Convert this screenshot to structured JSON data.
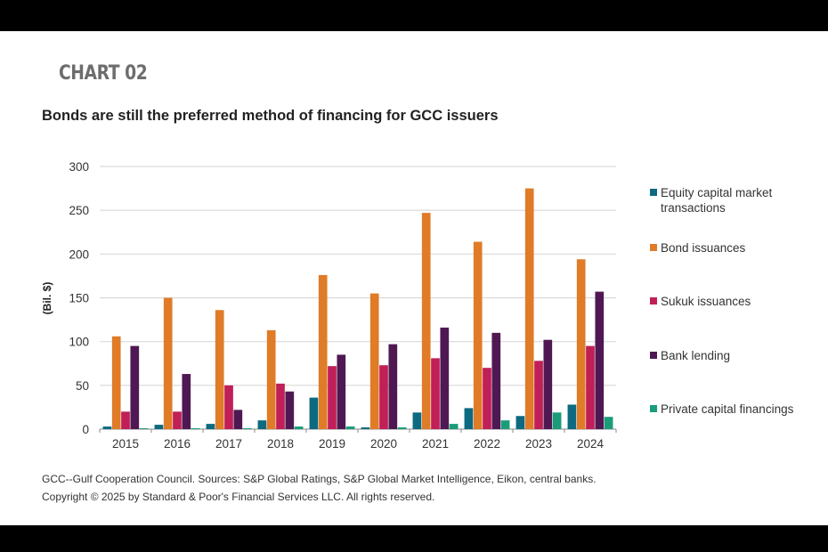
{
  "header": {
    "chart_label": "CHART 02"
  },
  "footnotes": {
    "line1": "GCC--Gulf Cooperation Council. Sources: S&P Global Ratings, S&P Global Market Intelligence, Eikon, central banks.",
    "line2": "Copyright © 2025 by Standard & Poor's Financial Services LLC. All rights reserved."
  },
  "chart_data": {
    "type": "bar",
    "title": "Bonds are still the preferred method of financing for GCC issuers",
    "xlabel": "",
    "ylabel": "(Bil. $)",
    "ylim": [
      0,
      300
    ],
    "yticks": [
      "0",
      "50",
      "100",
      "150",
      "200",
      "250",
      "300"
    ],
    "grid": true,
    "legend_position": "right",
    "categories": [
      "2015",
      "2016",
      "2017",
      "2018",
      "2019",
      "2020",
      "2021",
      "2022",
      "2023",
      "2024"
    ],
    "series": [
      {
        "name": "Equity capital market transactions",
        "color": "#0d6a80",
        "values": [
          3,
          5,
          6,
          10,
          36,
          2,
          19,
          24,
          15,
          28
        ]
      },
      {
        "name": "Bond issuances",
        "color": "#e07b28",
        "values": [
          106,
          150,
          136,
          113,
          176,
          155,
          247,
          214,
          275,
          194
        ]
      },
      {
        "name": "Sukuk issuances",
        "color": "#c01f57",
        "values": [
          20,
          20,
          50,
          52,
          72,
          73,
          81,
          70,
          78,
          95
        ]
      },
      {
        "name": "Bank lending",
        "color": "#4f1853",
        "values": [
          95,
          63,
          22,
          43,
          85,
          97,
          116,
          110,
          102,
          157
        ]
      },
      {
        "name": "Private capital financings",
        "color": "#1a9c78",
        "values": [
          1,
          1,
          1,
          3,
          3,
          2,
          6,
          10,
          19,
          14
        ]
      }
    ]
  }
}
